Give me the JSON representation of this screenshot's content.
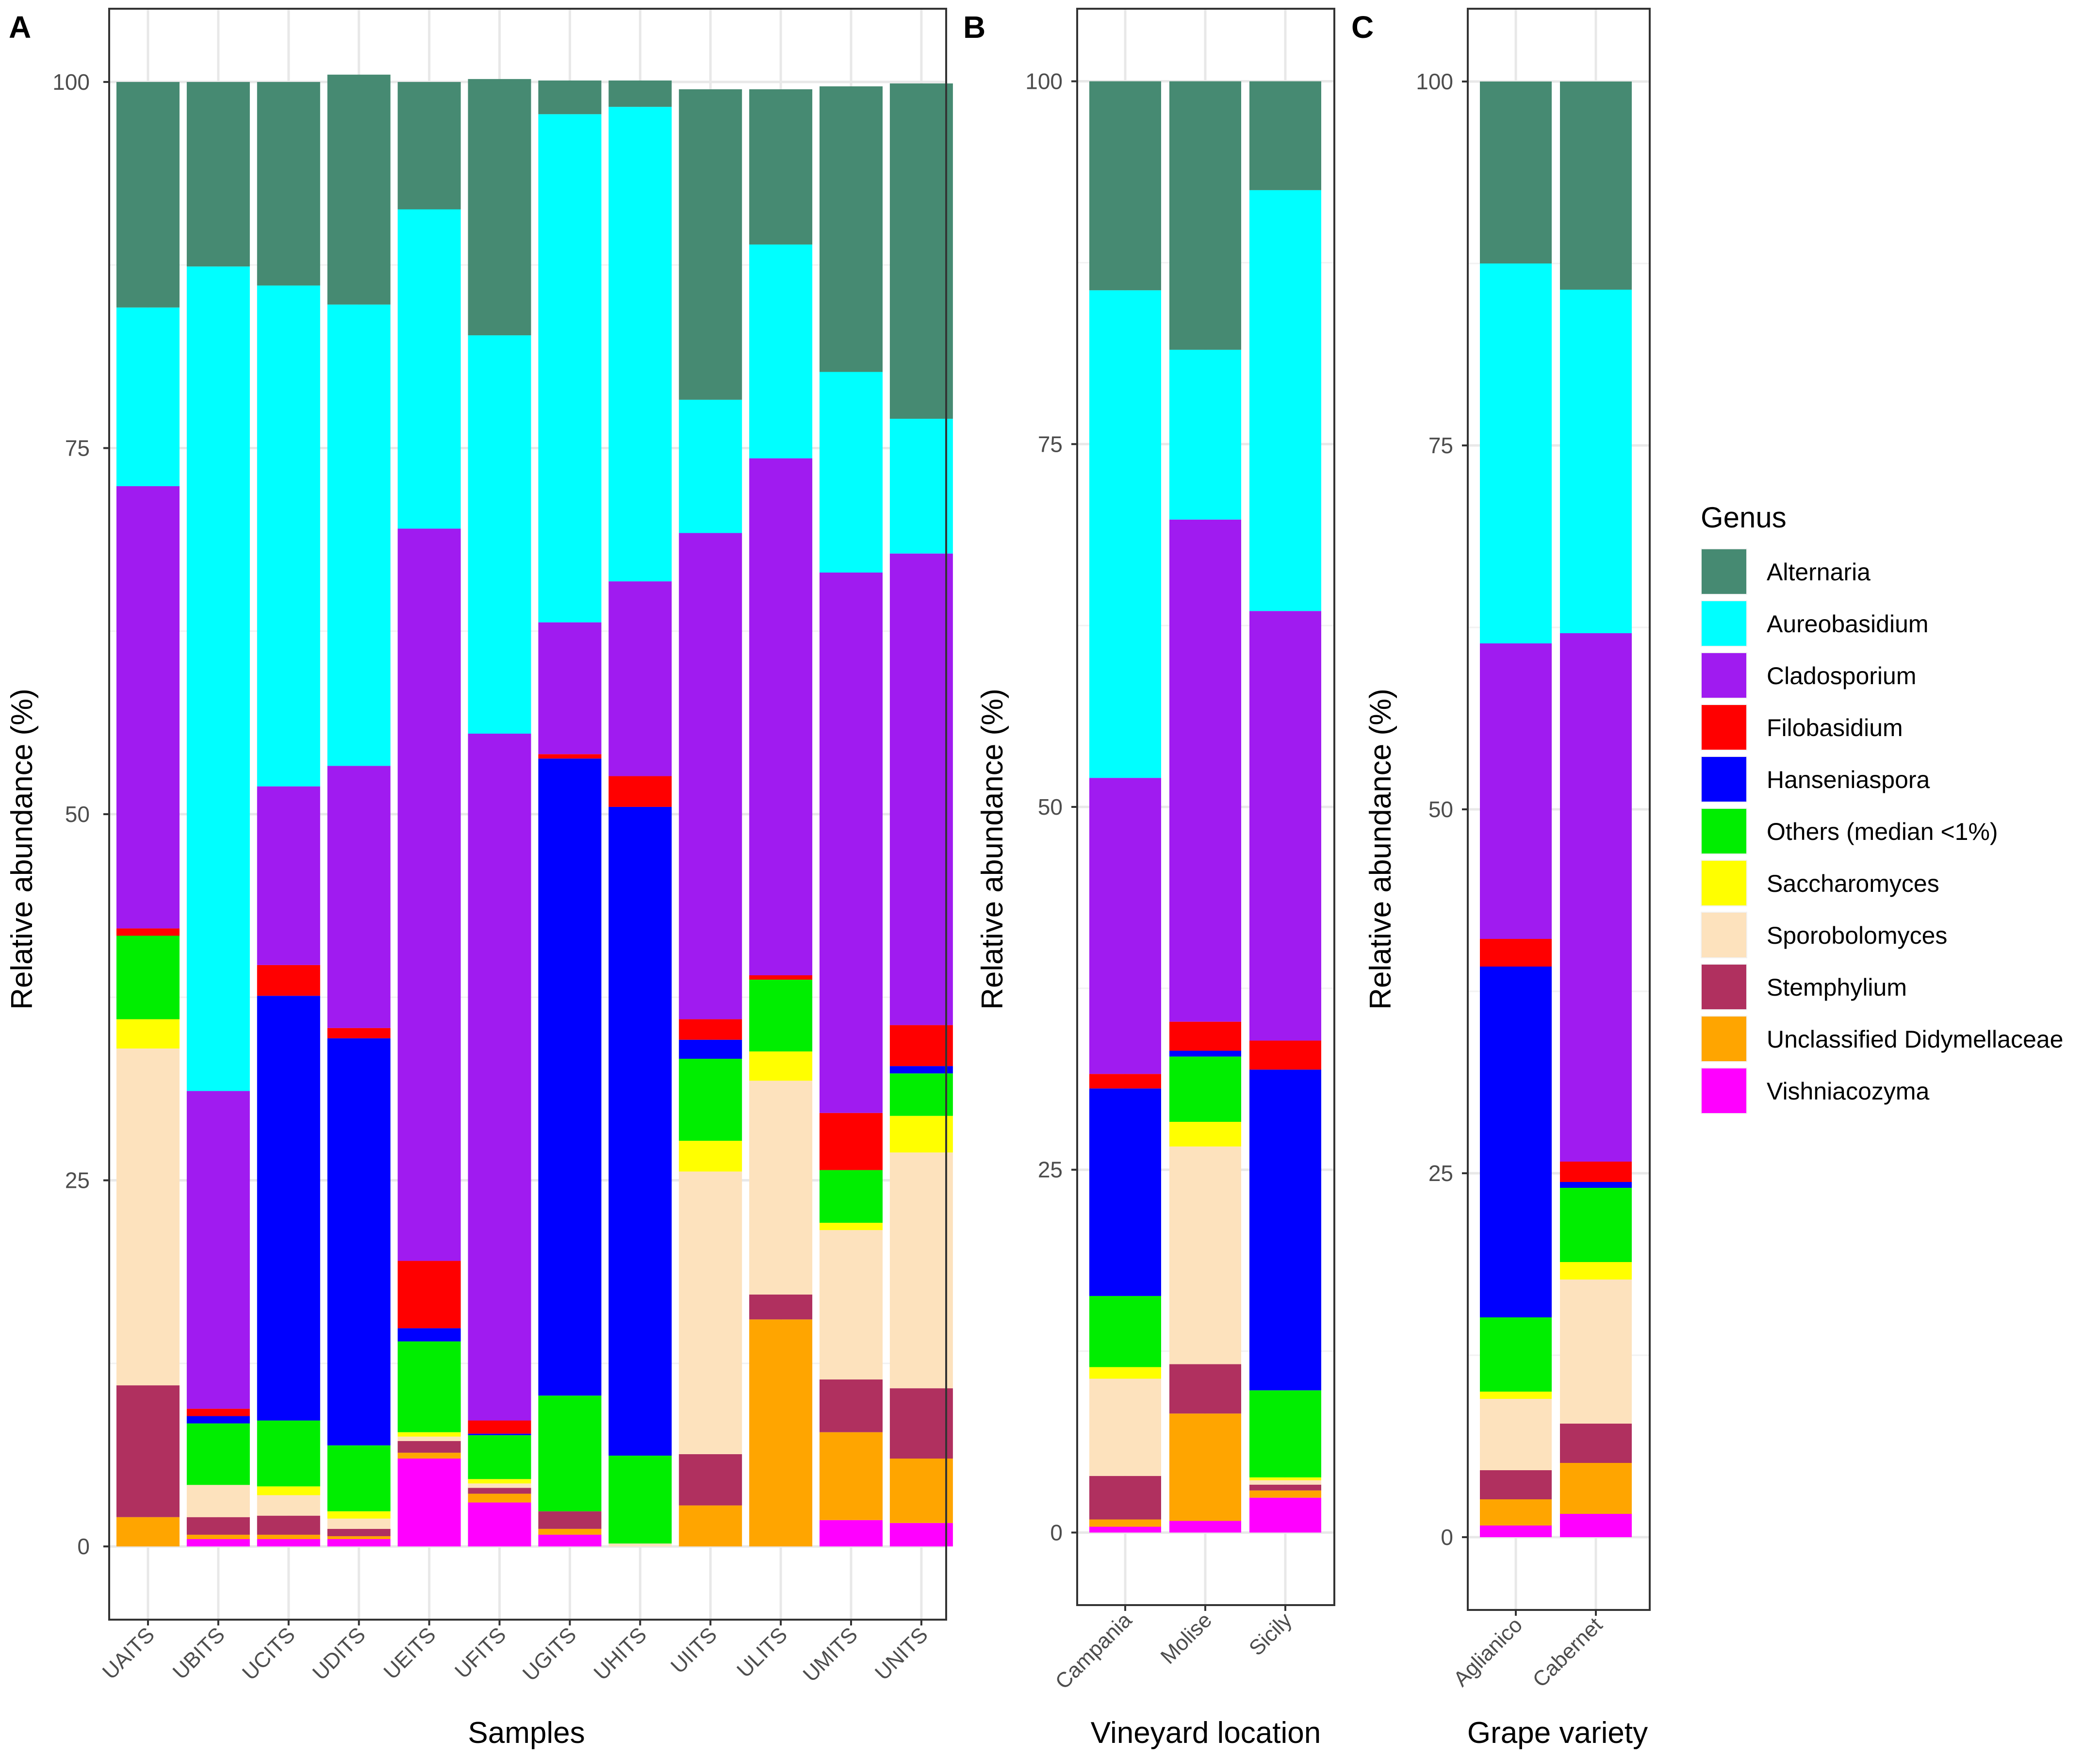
{
  "chart_data": {
    "type": "bar",
    "stacked": true,
    "genera": [
      "Alternaria",
      "Aureobasidium",
      "Cladosporium",
      "Filobasidium",
      "Hanseniaspora",
      "Others (median <1%)",
      "Saccharomyces",
      "Sporobolomyces",
      "Stemphylium",
      "Unclassified Didymellaceae",
      "Vishniacozyma"
    ],
    "colors": {
      "Alternaria": "#468a72",
      "Aureobasidium": "#00ffff",
      "Cladosporium": "#a01bf0",
      "Filobasidium": "#ff0000",
      "Hanseniaspora": "#0000ff",
      "Others (median <1%)": "#00ee00",
      "Saccharomyces": "#ffff00",
      "Sporobolomyces": "#fde2bd",
      "Stemphylium": "#b0305f",
      "Unclassified Didymellaceae": "#ffa500",
      "Vishniacozyma": "#ff00ff"
    },
    "legend": {
      "title": "Genus",
      "position": "right"
    },
    "panels": [
      {
        "letter": "A",
        "xlabel": "Samples",
        "ylabel": "Relative abundance (%)",
        "ylim": [
          -5,
          105
        ],
        "yticks": [
          0,
          25,
          50,
          75,
          100
        ],
        "categories": [
          "UAITS",
          "UBITS",
          "UCITS",
          "UDITS",
          "UEITS",
          "UFITS",
          "UGITS",
          "UHITS",
          "UIITS",
          "ULITS",
          "UMITS",
          "UNITS"
        ],
        "series": [
          {
            "name": "Vishniacozyma",
            "values": [
              0,
              0.5,
              0.5,
              0.5,
              6,
              3,
              0.8,
              0,
              0,
              0,
              1.8,
              1.6
            ]
          },
          {
            "name": "Unclassified Didymellaceae",
            "values": [
              2,
              0.3,
              0.3,
              0.2,
              0.4,
              0.6,
              0.4,
              0,
              2.8,
              15.5,
              6,
              4.4
            ]
          },
          {
            "name": "Stemphylium",
            "values": [
              9,
              1.2,
              1.3,
              0.5,
              0.8,
              0.4,
              1.2,
              0,
              3.5,
              1.7,
              3.6,
              4.8
            ]
          },
          {
            "name": "Sporobolomyces",
            "values": [
              23,
              2.2,
              1.4,
              0.7,
              0.3,
              0.3,
              0,
              0.2,
              19.3,
              14.6,
              10.2,
              16.1
            ]
          },
          {
            "name": "Saccharomyces",
            "values": [
              2,
              0,
              0.6,
              0.5,
              0.3,
              0.3,
              0,
              0,
              2.1,
              2,
              0.5,
              2.5
            ]
          },
          {
            "name": "Others (median <1%)",
            "values": [
              5.7,
              4.2,
              4.5,
              4.5,
              6.2,
              3,
              7.9,
              6,
              5.6,
              4.9,
              3.6,
              2.9
            ]
          },
          {
            "name": "Hanseniaspora",
            "values": [
              0,
              0.5,
              29,
              27.8,
              0.9,
              0.1,
              43.5,
              44.3,
              1.3,
              0,
              0,
              0.5
            ]
          },
          {
            "name": "Filobasidium",
            "values": [
              0.5,
              0.5,
              2.1,
              0.7,
              4.6,
              0.9,
              0.3,
              2.1,
              1.4,
              0.3,
              3.9,
              2.8
            ]
          },
          {
            "name": "Cladosporium",
            "values": [
              30.2,
              21.7,
              12.2,
              17.9,
              50,
              46.9,
              9,
              13.3,
              33.2,
              35.3,
              36.9,
              32.2
            ]
          },
          {
            "name": "Aureobasidium",
            "values": [
              12.2,
              56.3,
              34.2,
              31.5,
              21.8,
              27.2,
              34.7,
              32.4,
              9.1,
              14.6,
              13.7,
              9.2
            ]
          },
          {
            "name": "Alternaria",
            "values": [
              15.4,
              12.6,
              13.9,
              15.7,
              8.7,
              17.5,
              2.3,
              1.8,
              21.2,
              10.6,
              19.5,
              22.9
            ]
          }
        ]
      },
      {
        "letter": "B",
        "xlabel": "Vineyard location",
        "ylabel": "Relative abundance (%)",
        "ylim": [
          -5,
          105
        ],
        "yticks": [
          0,
          25,
          50,
          75,
          100
        ],
        "categories": [
          "Campania",
          "Molise",
          "Sicily"
        ],
        "series": [
          {
            "name": "Vishniacozyma",
            "values": [
              0.4,
              0.8,
              2.4
            ]
          },
          {
            "name": "Unclassified Didymellaceae",
            "values": [
              0.5,
              7.4,
              0.5
            ]
          },
          {
            "name": "Stemphylium",
            "values": [
              3,
              3.4,
              0.4
            ]
          },
          {
            "name": "Sporobolomyces",
            "values": [
              6.7,
              15,
              0.3
            ]
          },
          {
            "name": "Saccharomyces",
            "values": [
              0.8,
              1.7,
              0.2
            ]
          },
          {
            "name": "Others (median <1%)",
            "values": [
              4.9,
              4.5,
              6
            ]
          },
          {
            "name": "Hanseniaspora",
            "values": [
              14.3,
              0.4,
              22.1
            ]
          },
          {
            "name": "Filobasidium",
            "values": [
              1,
              2,
              2
            ]
          },
          {
            "name": "Cladosporium",
            "values": [
              20.4,
              34.6,
              29.6
            ]
          },
          {
            "name": "Aureobasidium",
            "values": [
              33.6,
              11.7,
              29
            ]
          },
          {
            "name": "Alternaria",
            "values": [
              14.4,
              18.5,
              7.5
            ]
          }
        ]
      },
      {
        "letter": "C",
        "xlabel": "Grape variety",
        "ylabel": "Relative abundance (%)",
        "ylim": [
          -5,
          105
        ],
        "yticks": [
          0,
          25,
          50,
          75,
          100
        ],
        "categories": [
          "Aglianico",
          "Cabernet"
        ],
        "series": [
          {
            "name": "Vishniacozyma",
            "values": [
              0.8,
              1.6
            ]
          },
          {
            "name": "Unclassified Didymellaceae",
            "values": [
              1.8,
              3.5
            ]
          },
          {
            "name": "Stemphylium",
            "values": [
              2,
              2.7
            ]
          },
          {
            "name": "Sporobolomyces",
            "values": [
              4.9,
              9.9
            ]
          },
          {
            "name": "Saccharomyces",
            "values": [
              0.5,
              1.2
            ]
          },
          {
            "name": "Others (median <1%)",
            "values": [
              5.1,
              5.1
            ]
          },
          {
            "name": "Hanseniaspora",
            "values": [
              24.1,
              0.4
            ]
          },
          {
            "name": "Filobasidium",
            "values": [
              1.9,
              1.4
            ]
          },
          {
            "name": "Cladosporium",
            "values": [
              20.3,
              36.3
            ]
          },
          {
            "name": "Aureobasidium",
            "values": [
              26.1,
              23.6
            ]
          },
          {
            "name": "Alternaria",
            "values": [
              12.5,
              14.3
            ]
          }
        ]
      }
    ]
  }
}
